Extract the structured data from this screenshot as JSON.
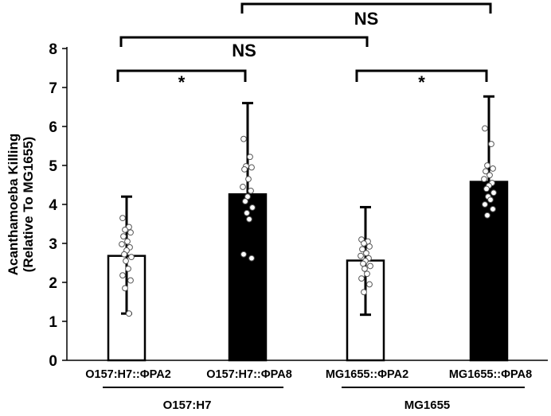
{
  "chart_data": {
    "type": "bar",
    "ylabel_lines": [
      "Acanthamoeba Killing",
      "(Relative To MG1655)"
    ],
    "ylim": [
      0,
      8
    ],
    "yticks": [
      0,
      1,
      2,
      3,
      4,
      5,
      6,
      7,
      8
    ],
    "categories": [
      "O157:H7::ΦPA2",
      "O157:H7::ΦPA8",
      "MG1655::ΦPA2",
      "MG1655::ΦPA8"
    ],
    "values": [
      2.68,
      4.26,
      2.56,
      4.58
    ],
    "error_upper": [
      4.2,
      6.6,
      3.93,
      6.77
    ],
    "error_lower": [
      1.2,
      null,
      1.17,
      null
    ],
    "bar_fills": [
      "#ffffff",
      "#000000",
      "#ffffff",
      "#000000"
    ],
    "points": [
      [
        3.65,
        3.42,
        3.35,
        3.28,
        3.18,
        3.05,
        2.98,
        2.9,
        2.82,
        2.72,
        2.65,
        2.55,
        2.35,
        2.18,
        2.05,
        1.85,
        1.2
      ],
      [
        5.68,
        5.22,
        4.98,
        4.95,
        4.9,
        4.65,
        4.45,
        4.35,
        4.2,
        4.08,
        3.92,
        3.78,
        3.62,
        2.72,
        2.62
      ],
      [
        3.1,
        3.05,
        3.0,
        2.92,
        2.85,
        2.75,
        2.68,
        2.62,
        2.55,
        2.48,
        2.42,
        2.35,
        2.22,
        2.1,
        1.95,
        1.75
      ],
      [
        5.95,
        5.55,
        5.0,
        4.92,
        4.85,
        4.75,
        4.65,
        4.55,
        4.48,
        4.4,
        4.3,
        4.2,
        4.12,
        4.0,
        3.88,
        3.72
      ]
    ],
    "groups": [
      {
        "label": "O157:H7",
        "bars": [
          0,
          1
        ]
      },
      {
        "label": "MG1655",
        "bars": [
          2,
          3
        ]
      }
    ],
    "significance": [
      {
        "from": 0,
        "to": 1,
        "label": "*"
      },
      {
        "from": 2,
        "to": 3,
        "label": "*"
      },
      {
        "from": 0,
        "to": 2,
        "label": "NS"
      },
      {
        "from": 1,
        "to": 3,
        "label": "NS"
      }
    ],
    "grid": false,
    "legend": "none"
  }
}
